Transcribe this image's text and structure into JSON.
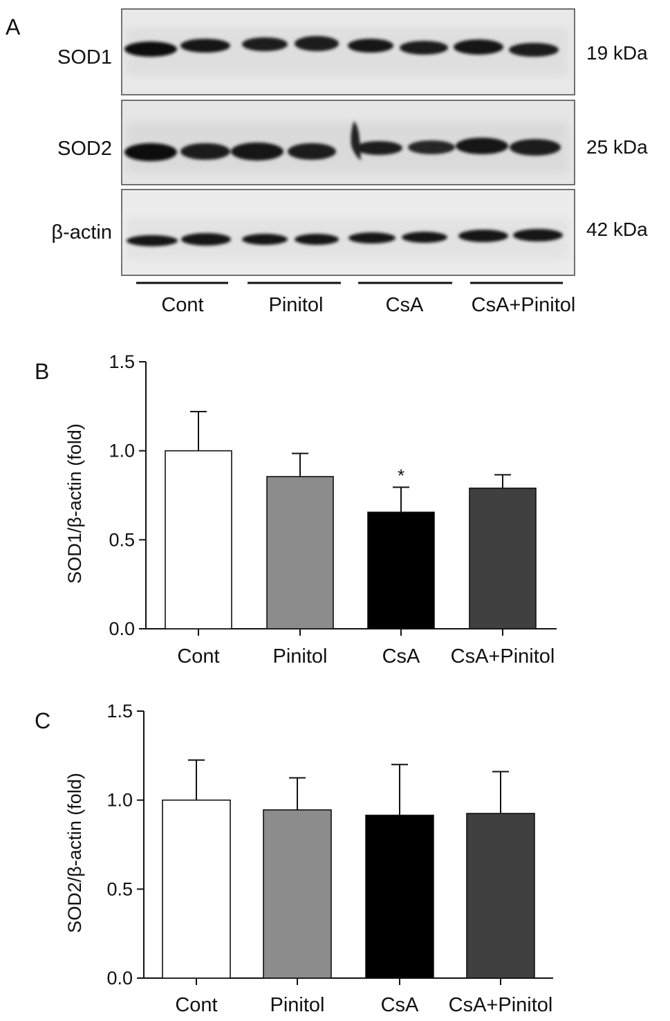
{
  "panels": {
    "a": "A",
    "b": "B",
    "c": "C"
  },
  "blot": {
    "rows": [
      {
        "label": "SOD1",
        "size": "19 kDa"
      },
      {
        "label": "SOD2",
        "size": "25 kDa"
      },
      {
        "label": "β-actin",
        "size": "42 kDa"
      }
    ],
    "groups": [
      "Cont",
      "Pinitol",
      "CsA",
      "CsA+Pinitol"
    ]
  },
  "colors": {
    "Cont": "#ffffff",
    "Pinitol": "#8c8c8c",
    "CsA": "#000000",
    "CsA+Pinitol": "#404040"
  },
  "chart_data": [
    {
      "type": "bar",
      "panel": "B",
      "categories": [
        "Cont",
        "Pinitol",
        "CsA",
        "CsA+Pinitol"
      ],
      "values": [
        1.0,
        0.855,
        0.655,
        0.79
      ],
      "errors": [
        0.22,
        0.13,
        0.14,
        0.075
      ],
      "significance": [
        "",
        "",
        "*",
        ""
      ],
      "ylabel": "SOD1/β-actin (fold)",
      "ylim": [
        0,
        1.5
      ],
      "yticks": [
        "0.0",
        "0.5",
        "1.0",
        "1.5"
      ]
    },
    {
      "type": "bar",
      "panel": "C",
      "categories": [
        "Cont",
        "Pinitol",
        "CsA",
        "CsA+Pinitol"
      ],
      "values": [
        1.0,
        0.945,
        0.915,
        0.925
      ],
      "errors": [
        0.225,
        0.18,
        0.285,
        0.235
      ],
      "significance": [
        "",
        "",
        "",
        ""
      ],
      "ylabel": "SOD2/β-actin (fold)",
      "ylim": [
        0,
        1.5
      ],
      "yticks": [
        "0.0",
        "0.5",
        "1.0",
        "1.5"
      ]
    }
  ]
}
